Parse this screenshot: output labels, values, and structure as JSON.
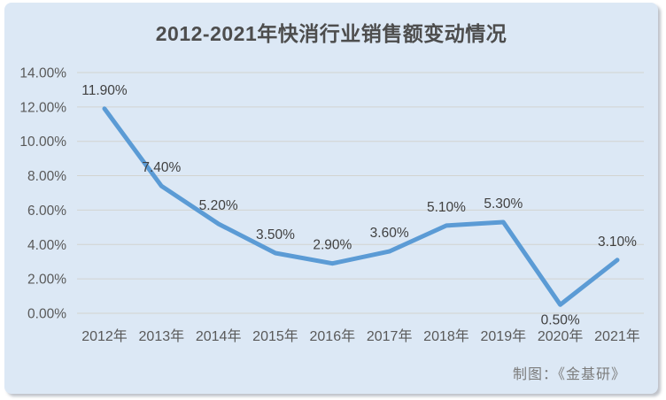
{
  "card": {
    "background_color": "#dce8f5",
    "credit": "制图：《金基研》"
  },
  "chart_data": {
    "type": "line",
    "title": "2012-2021年快消行业销售额变动情况",
    "categories": [
      "2012年",
      "2013年",
      "2014年",
      "2015年",
      "2016年",
      "2017年",
      "2018年",
      "2019年",
      "2020年",
      "2021年"
    ],
    "values": [
      11.9,
      7.4,
      5.2,
      3.5,
      2.9,
      3.6,
      5.1,
      5.3,
      0.5,
      3.1
    ],
    "point_labels": [
      "11.90%",
      "7.40%",
      "5.20%",
      "3.50%",
      "2.90%",
      "3.60%",
      "5.10%",
      "5.30%",
      "0.50%",
      "3.10%"
    ],
    "labels_below_point_indices": [
      8
    ],
    "y_tick_labels": [
      "14.00%",
      "12.00%",
      "10.00%",
      "8.00%",
      "6.00%",
      "4.00%",
      "2.00%",
      "0.00%"
    ],
    "ylim": [
      0,
      14
    ],
    "xlabel": "",
    "ylabel": "",
    "grid": true,
    "legend": "none",
    "line_color": "#5b9bd5",
    "grid_color": "#d2d3d0",
    "axis_text_color": "#595959",
    "data_label_color": "#404040"
  }
}
